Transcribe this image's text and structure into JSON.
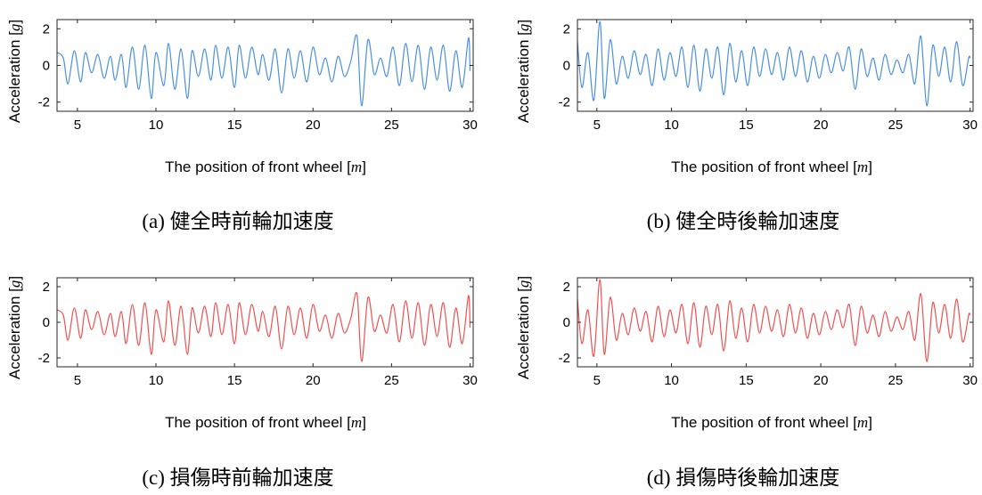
{
  "figure": {
    "colors": {
      "healthy": "#4a90e2",
      "damaged": "#f25050",
      "axis": "#262626"
    },
    "panels": [
      {
        "id": "a",
        "caption": "(a)  健全時前輪加速度",
        "xlabel": "The position of front wheel [m]",
        "xlabel_prefix": "The position of front wheel [",
        "xlabel_unit": "m",
        "xlabel_suffix": "]",
        "ylabel": "Acceleration [g]",
        "ylabel_prefix": "Acceleration [",
        "ylabel_unit": "g",
        "ylabel_suffix": "]",
        "color_key": "healthy"
      },
      {
        "id": "b",
        "caption": "(b)  健全時後輪加速度",
        "xlabel": "The position of front wheel [m]",
        "xlabel_prefix": "The position of front wheel [",
        "xlabel_unit": "m",
        "xlabel_suffix": "]",
        "ylabel": "Acceleration [g]",
        "ylabel_prefix": "Acceleration [",
        "ylabel_unit": "g",
        "ylabel_suffix": "]",
        "color_key": "healthy"
      },
      {
        "id": "c",
        "caption": "(c)  損傷時前輪加速度",
        "xlabel": "The position of front wheel [m]",
        "xlabel_prefix": "The position of front wheel [",
        "xlabel_unit": "m",
        "xlabel_suffix": "]",
        "ylabel": "Acceleration [g]",
        "ylabel_prefix": "Acceleration [",
        "ylabel_unit": "g",
        "ylabel_suffix": "]",
        "color_key": "damaged"
      },
      {
        "id": "d",
        "caption": "(d)  損傷時後輪加速度",
        "xlabel": "The position of front wheel [m]",
        "xlabel_prefix": "The position of front wheel [",
        "xlabel_unit": "m",
        "xlabel_suffix": "]",
        "ylabel": "Acceleration [g]",
        "ylabel_prefix": "Acceleration [",
        "ylabel_unit": "g",
        "ylabel_suffix": "]",
        "color_key": "damaged"
      }
    ]
  },
  "chart_data": [
    {
      "panel": "a",
      "type": "line",
      "xlabel": "The position of front wheel [m]",
      "ylabel": "Acceleration [g]",
      "xlim": [
        3.7,
        30.2
      ],
      "ylim": [
        -2.5,
        2.5
      ],
      "xticks": [
        5,
        10,
        15,
        20,
        25,
        30
      ],
      "yticks": [
        -2,
        0,
        2
      ],
      "grid": false,
      "color": "#4a90e2",
      "series": [
        {
          "x": [
            3.7,
            4.1,
            4.4,
            4.8,
            5.2,
            5.5,
            5.9,
            6.3,
            6.7,
            7.1,
            7.4,
            7.8,
            8.1,
            8.5,
            8.9,
            9.3,
            9.7,
            10.0,
            10.5,
            10.8,
            11.2,
            11.6,
            12.0,
            12.3,
            12.7,
            13.1,
            13.5,
            13.8,
            14.2,
            14.6,
            15.0,
            15.3,
            15.7,
            16.1,
            16.5,
            16.8,
            17.2,
            17.6,
            18.0,
            18.4,
            18.8,
            19.2,
            19.6,
            20.0,
            20.4,
            20.8,
            21.2,
            21.6,
            22.0,
            22.4,
            22.8,
            23.1,
            23.5,
            23.9,
            24.3,
            24.7,
            25.1,
            25.5,
            25.9,
            26.3,
            26.7,
            27.1,
            27.5,
            27.9,
            28.3,
            28.7,
            29.1,
            29.5,
            29.9,
            30.0
          ],
          "y": [
            0.7,
            0.4,
            -1.0,
            0.8,
            -0.9,
            0.7,
            -0.4,
            0.6,
            -0.7,
            0.5,
            -0.8,
            0.6,
            -1.2,
            1.0,
            -1.3,
            1.1,
            -1.8,
            0.7,
            -1.1,
            1.2,
            -1.3,
            0.9,
            -1.8,
            0.8,
            -0.6,
            0.9,
            -0.8,
            1.1,
            -0.7,
            1.0,
            -1.2,
            1.1,
            -0.7,
            1.0,
            -0.5,
            0.6,
            -0.8,
            0.9,
            -1.5,
            0.9,
            -0.7,
            0.8,
            -0.9,
            1.0,
            -0.5,
            0.4,
            -0.9,
            0.5,
            -0.6,
            0.2,
            1.6,
            -2.2,
            1.4,
            -0.5,
            0.4,
            -0.6,
            1.0,
            -1.1,
            1.2,
            -0.9,
            1.1,
            -1.3,
            1.0,
            -0.8,
            1.1,
            -1.4,
            0.8,
            -1.2,
            1.5,
            -0.3
          ]
        }
      ]
    },
    {
      "panel": "b",
      "type": "line",
      "xlabel": "The position of front wheel [m]",
      "ylabel": "Acceleration [g]",
      "xlim": [
        3.7,
        30.2
      ],
      "ylim": [
        -2.5,
        2.5
      ],
      "xticks": [
        5,
        10,
        15,
        20,
        25,
        30
      ],
      "yticks": [
        -2,
        0,
        2
      ],
      "grid": false,
      "color": "#4a90e2",
      "series": [
        {
          "x": [
            3.7,
            4.0,
            4.4,
            4.8,
            5.2,
            5.5,
            5.9,
            6.3,
            6.7,
            7.1,
            7.5,
            7.9,
            8.3,
            8.7,
            9.1,
            9.5,
            9.9,
            10.3,
            10.7,
            11.1,
            11.5,
            11.9,
            12.3,
            12.7,
            13.1,
            13.5,
            13.9,
            14.3,
            14.7,
            15.1,
            15.5,
            15.9,
            16.3,
            16.7,
            17.1,
            17.5,
            17.9,
            18.3,
            18.7,
            19.1,
            19.5,
            19.9,
            20.3,
            20.7,
            21.1,
            21.5,
            21.9,
            22.3,
            22.7,
            23.1,
            23.5,
            23.9,
            24.3,
            24.7,
            25.1,
            25.5,
            25.9,
            26.3,
            26.7,
            27.1,
            27.5,
            27.9,
            28.3,
            28.7,
            29.1,
            29.5,
            29.9,
            30.0
          ],
          "y": [
            1.3,
            -1.2,
            0.7,
            -1.9,
            2.4,
            -1.8,
            1.4,
            -1.0,
            0.5,
            -0.7,
            0.8,
            -0.5,
            0.6,
            -1.1,
            0.9,
            -0.8,
            0.7,
            -0.6,
            1.0,
            -1.2,
            1.1,
            -1.4,
            0.9,
            -0.7,
            1.0,
            -1.6,
            1.2,
            -0.9,
            0.8,
            -1.1,
            1.0,
            -0.6,
            0.9,
            -0.5,
            0.7,
            -0.8,
            1.0,
            -0.6,
            0.8,
            -0.9,
            0.5,
            -0.7,
            0.6,
            -0.4,
            0.7,
            -0.3,
            1.0,
            -1.3,
            0.9,
            -0.6,
            0.4,
            -0.8,
            0.6,
            -0.5,
            0.3,
            -0.4,
            0.6,
            -1.0,
            1.6,
            -2.2,
            1.1,
            -0.6,
            1.0,
            -0.9,
            1.3,
            -1.1,
            0.4,
            0.4
          ]
        }
      ]
    },
    {
      "panel": "c",
      "type": "line",
      "xlabel": "The position of front wheel [m]",
      "ylabel": "Acceleration [g]",
      "xlim": [
        3.7,
        30.2
      ],
      "ylim": [
        -2.5,
        2.5
      ],
      "xticks": [
        5,
        10,
        15,
        20,
        25,
        30
      ],
      "yticks": [
        -2,
        0,
        2
      ],
      "grid": false,
      "color": "#f25050",
      "series": [
        {
          "x": [
            3.7,
            4.1,
            4.4,
            4.8,
            5.2,
            5.5,
            5.9,
            6.3,
            6.7,
            7.1,
            7.4,
            7.8,
            8.1,
            8.5,
            8.9,
            9.3,
            9.7,
            10.0,
            10.5,
            10.8,
            11.2,
            11.6,
            12.0,
            12.3,
            12.7,
            13.1,
            13.5,
            13.8,
            14.2,
            14.6,
            15.0,
            15.3,
            15.7,
            16.1,
            16.5,
            16.8,
            17.2,
            17.6,
            18.0,
            18.4,
            18.8,
            19.2,
            19.6,
            20.0,
            20.4,
            20.8,
            21.2,
            21.6,
            22.0,
            22.4,
            22.8,
            23.1,
            23.5,
            23.9,
            24.3,
            24.7,
            25.1,
            25.5,
            25.9,
            26.3,
            26.7,
            27.1,
            27.5,
            27.9,
            28.3,
            28.7,
            29.1,
            29.5,
            29.9,
            30.0
          ],
          "y": [
            0.7,
            0.4,
            -1.0,
            0.8,
            -0.9,
            0.7,
            -0.4,
            0.6,
            -0.7,
            0.5,
            -0.8,
            0.6,
            -1.2,
            1.0,
            -1.3,
            1.1,
            -1.8,
            0.7,
            -1.1,
            1.2,
            -1.3,
            0.9,
            -1.8,
            0.8,
            -0.6,
            0.9,
            -0.8,
            1.1,
            -0.7,
            1.0,
            -1.2,
            1.1,
            -0.7,
            1.0,
            -0.5,
            0.6,
            -0.8,
            0.9,
            -1.5,
            0.9,
            -0.7,
            0.8,
            -0.9,
            1.0,
            -0.5,
            0.4,
            -0.9,
            0.5,
            -0.6,
            0.2,
            1.6,
            -2.2,
            1.4,
            -0.5,
            0.4,
            -0.6,
            1.0,
            -1.1,
            1.2,
            -0.9,
            1.1,
            -1.3,
            1.0,
            -0.8,
            1.1,
            -1.4,
            0.8,
            -1.2,
            1.5,
            -0.3
          ]
        }
      ]
    },
    {
      "panel": "d",
      "type": "line",
      "xlabel": "The position of front wheel [m]",
      "ylabel": "Acceleration [g]",
      "xlim": [
        3.7,
        30.2
      ],
      "ylim": [
        -2.5,
        2.5
      ],
      "xticks": [
        5,
        10,
        15,
        20,
        25,
        30
      ],
      "yticks": [
        -2,
        0,
        2
      ],
      "grid": false,
      "color": "#f25050",
      "series": [
        {
          "x": [
            3.7,
            4.0,
            4.4,
            4.8,
            5.2,
            5.5,
            5.9,
            6.3,
            6.7,
            7.1,
            7.5,
            7.9,
            8.3,
            8.7,
            9.1,
            9.5,
            9.9,
            10.3,
            10.7,
            11.1,
            11.5,
            11.9,
            12.3,
            12.7,
            13.1,
            13.5,
            13.9,
            14.3,
            14.7,
            15.1,
            15.5,
            15.9,
            16.3,
            16.7,
            17.1,
            17.5,
            17.9,
            18.3,
            18.7,
            19.1,
            19.5,
            19.9,
            20.3,
            20.7,
            21.1,
            21.5,
            21.9,
            22.3,
            22.7,
            23.1,
            23.5,
            23.9,
            24.3,
            24.7,
            25.1,
            25.5,
            25.9,
            26.3,
            26.7,
            27.1,
            27.5,
            27.9,
            28.3,
            28.7,
            29.1,
            29.5,
            29.9,
            30.0
          ],
          "y": [
            1.3,
            -1.2,
            0.7,
            -1.9,
            2.4,
            -1.8,
            1.4,
            -1.0,
            0.5,
            -0.7,
            0.8,
            -0.5,
            0.6,
            -1.1,
            0.9,
            -0.8,
            0.7,
            -0.6,
            1.0,
            -1.2,
            1.1,
            -1.4,
            0.9,
            -0.7,
            1.0,
            -1.6,
            1.2,
            -0.9,
            0.8,
            -1.1,
            1.0,
            -0.6,
            0.9,
            -0.5,
            0.7,
            -0.8,
            1.0,
            -0.6,
            0.8,
            -0.9,
            0.5,
            -0.7,
            0.6,
            -0.4,
            0.7,
            -0.3,
            1.0,
            -1.3,
            0.9,
            -0.6,
            0.4,
            -0.8,
            0.6,
            -0.5,
            0.3,
            -0.4,
            0.6,
            -1.0,
            1.6,
            -2.2,
            1.1,
            -0.6,
            1.0,
            -0.9,
            1.3,
            -1.1,
            0.4,
            0.4
          ]
        }
      ]
    }
  ]
}
